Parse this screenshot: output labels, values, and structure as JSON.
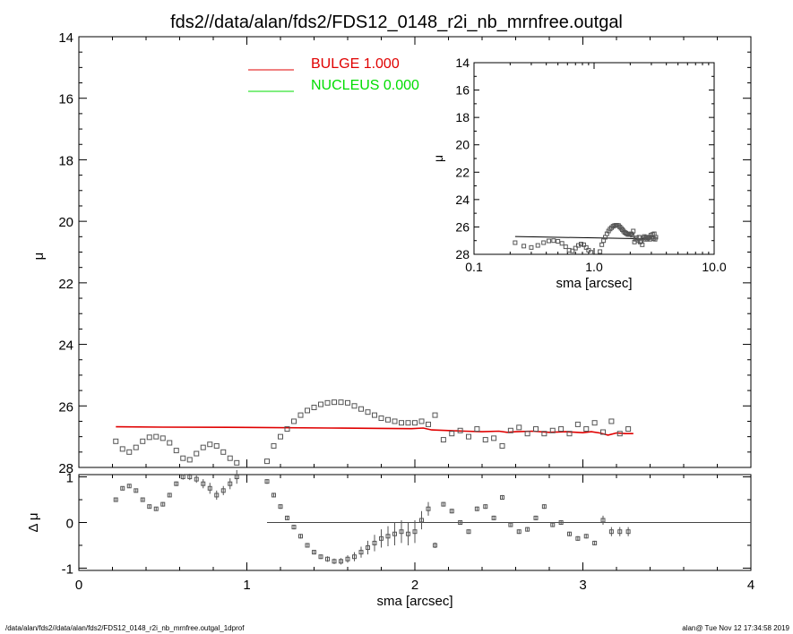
{
  "title": "fds2//data/alan/fds2/FDS12_0148_r2i_nb_mrnfree.outgal",
  "footer_left": "/data/alan/fds2//data/alan/fds2/FDS12_0148_r2i_nb_mrnfree.outgal_1dprof",
  "footer_right": "alan@  Tue Nov 12 17:34:58 2019",
  "colors": {
    "bulge": "#e00000",
    "nucleus": "#00dd00",
    "axes": "#000000",
    "points": "#555555"
  },
  "chart_data": [
    {
      "id": "main",
      "type": "scatter",
      "xlabel": "sma [arcsec]",
      "ylabel": "μ",
      "xlim": [
        0,
        4
      ],
      "ylim": [
        28,
        14
      ],
      "xticks": [
        0,
        1,
        2,
        3,
        4
      ],
      "xtick_labels": [
        "0",
        "1",
        "2",
        "3",
        "4"
      ],
      "yticks": [
        14,
        16,
        18,
        20,
        22,
        24,
        26,
        28
      ],
      "ytick_labels": [
        "14",
        "16",
        "18",
        "20",
        "22",
        "24",
        "26",
        "28"
      ],
      "legend": [
        {
          "label": "BULGE  1.000",
          "color": "#e00000"
        },
        {
          "label": "NUCLEUS  0.000",
          "color": "#00dd00"
        }
      ],
      "legend_placement": "top-center",
      "series": [
        {
          "name": "BULGE  1.000",
          "style": "line",
          "x": [
            0.22,
            0.5,
            1.0,
            1.5,
            1.98,
            2.05,
            2.1,
            2.2,
            2.3,
            2.4,
            2.5,
            2.55,
            2.6,
            2.7,
            2.8,
            2.9,
            3.0,
            3.05,
            3.1,
            3.15,
            3.2,
            3.25,
            3.3
          ],
          "y": [
            26.68,
            26.69,
            26.7,
            26.72,
            26.74,
            26.72,
            26.78,
            26.8,
            26.82,
            26.84,
            26.82,
            26.86,
            26.84,
            26.82,
            26.86,
            26.84,
            26.87,
            26.84,
            26.88,
            26.95,
            26.88,
            26.9,
            26.9
          ]
        },
        {
          "name": "data",
          "style": "points",
          "x": [
            0.22,
            0.26,
            0.3,
            0.34,
            0.38,
            0.42,
            0.46,
            0.5,
            0.54,
            0.58,
            0.62,
            0.66,
            0.7,
            0.74,
            0.78,
            0.82,
            0.86,
            0.9,
            0.94,
            1.12,
            1.16,
            1.2,
            1.24,
            1.28,
            1.32,
            1.36,
            1.4,
            1.44,
            1.48,
            1.52,
            1.56,
            1.6,
            1.64,
            1.68,
            1.72,
            1.76,
            1.8,
            1.84,
            1.88,
            1.92,
            1.96,
            2.0,
            2.04,
            2.08,
            2.12,
            2.17,
            2.22,
            2.27,
            2.32,
            2.37,
            2.42,
            2.47,
            2.52,
            2.57,
            2.62,
            2.67,
            2.72,
            2.77,
            2.82,
            2.87,
            2.92,
            2.97,
            3.02,
            3.07,
            3.12,
            3.17,
            3.22,
            3.27
          ],
          "y": [
            27.15,
            27.4,
            27.5,
            27.35,
            27.15,
            27.02,
            27.0,
            27.05,
            27.2,
            27.45,
            27.7,
            27.75,
            27.55,
            27.35,
            27.25,
            27.3,
            27.5,
            27.7,
            27.85,
            27.8,
            27.3,
            27.0,
            26.75,
            26.5,
            26.3,
            26.15,
            26.05,
            25.95,
            25.9,
            25.88,
            25.88,
            25.9,
            26.0,
            26.1,
            26.2,
            26.3,
            26.4,
            26.45,
            26.5,
            26.55,
            26.55,
            26.55,
            26.5,
            26.6,
            26.3,
            27.1,
            26.9,
            26.8,
            27.0,
            26.75,
            27.1,
            27.05,
            27.3,
            26.8,
            26.7,
            26.9,
            26.75,
            26.9,
            26.8,
            26.75,
            26.9,
            26.6,
            26.75,
            26.55,
            26.85,
            26.5,
            26.9,
            26.75
          ]
        }
      ]
    },
    {
      "id": "residual",
      "type": "scatter",
      "xlabel": "sma [arcsec]",
      "ylabel": "Δ μ",
      "xlim": [
        0,
        4
      ],
      "ylim": [
        -1.05,
        1.05
      ],
      "yticks": [
        -1,
        0,
        1
      ],
      "ytick_labels": [
        "-1",
        "0",
        "1"
      ],
      "zero_line_x": [
        1.12,
        4.0
      ],
      "series": [
        {
          "name": "residual",
          "style": "points-errorbars",
          "x": [
            0.22,
            0.26,
            0.3,
            0.34,
            0.38,
            0.42,
            0.46,
            0.5,
            0.54,
            0.58,
            0.62,
            0.66,
            0.7,
            0.74,
            0.78,
            0.82,
            0.86,
            0.9,
            0.94,
            1.12,
            1.16,
            1.2,
            1.24,
            1.28,
            1.32,
            1.36,
            1.4,
            1.44,
            1.48,
            1.52,
            1.56,
            1.6,
            1.64,
            1.68,
            1.72,
            1.76,
            1.8,
            1.84,
            1.88,
            1.92,
            1.96,
            2.0,
            2.04,
            2.08,
            2.12,
            2.17,
            2.22,
            2.27,
            2.32,
            2.37,
            2.42,
            2.47,
            2.52,
            2.57,
            2.62,
            2.67,
            2.72,
            2.77,
            2.82,
            2.87,
            2.92,
            2.97,
            3.02,
            3.07,
            3.12,
            3.17,
            3.22,
            3.27
          ],
          "y": [
            0.5,
            0.75,
            0.8,
            0.7,
            0.5,
            0.35,
            0.3,
            0.4,
            0.6,
            0.85,
            1.0,
            1.0,
            0.95,
            0.85,
            0.75,
            0.6,
            0.7,
            0.85,
            1.0,
            0.9,
            0.6,
            0.35,
            0.1,
            -0.1,
            -0.3,
            -0.5,
            -0.65,
            -0.75,
            -0.8,
            -0.85,
            -0.85,
            -0.8,
            -0.75,
            -0.65,
            -0.55,
            -0.45,
            -0.35,
            -0.3,
            -0.25,
            -0.2,
            -0.25,
            -0.2,
            0.05,
            0.3,
            -0.5,
            0.4,
            0.25,
            0.0,
            -0.2,
            0.3,
            0.35,
            0.1,
            0.55,
            -0.05,
            -0.2,
            -0.15,
            0.1,
            0.35,
            -0.05,
            0.0,
            -0.25,
            -0.35,
            -0.3,
            -0.45,
            0.05,
            -0.2,
            -0.2,
            -0.2
          ],
          "err": [
            0.04,
            0.04,
            0.04,
            0.04,
            0.04,
            0.04,
            0.04,
            0.05,
            0.05,
            0.05,
            0.06,
            0.07,
            0.08,
            0.1,
            0.12,
            0.1,
            0.1,
            0.12,
            0.15,
            0.05,
            0.05,
            0.05,
            0.05,
            0.05,
            0.05,
            0.05,
            0.05,
            0.05,
            0.06,
            0.06,
            0.07,
            0.08,
            0.1,
            0.12,
            0.15,
            0.18,
            0.2,
            0.22,
            0.25,
            0.25,
            0.25,
            0.25,
            0.2,
            0.15,
            0.06,
            0.05,
            0.05,
            0.05,
            0.05,
            0.05,
            0.05,
            0.05,
            0.05,
            0.05,
            0.05,
            0.05,
            0.05,
            0.05,
            0.05,
            0.05,
            0.05,
            0.05,
            0.05,
            0.05,
            0.1,
            0.1,
            0.1,
            0.1
          ]
        }
      ]
    },
    {
      "id": "inset",
      "type": "scatter",
      "xlabel": "sma [arcsec]",
      "ylabel": "μ",
      "xscale": "log",
      "xlim": [
        0.1,
        10.0
      ],
      "ylim": [
        28,
        14
      ],
      "xticks": [
        0.1,
        1.0,
        10.0
      ],
      "xtick_labels": [
        "0.1",
        "1.0",
        "10.0"
      ],
      "yticks": [
        14,
        16,
        18,
        20,
        22,
        24,
        26,
        28
      ],
      "ytick_labels": [
        "14",
        "16",
        "18",
        "20",
        "22",
        "24",
        "26",
        "28"
      ],
      "series": [
        {
          "name": "BULGE  1.000",
          "style": "line",
          "x": [
            0.22,
            3.27
          ],
          "y": [
            26.7,
            26.88
          ]
        },
        {
          "name": "data",
          "style": "points",
          "x": [
            0.22,
            0.26,
            0.3,
            0.34,
            0.38,
            0.42,
            0.46,
            0.5,
            0.54,
            0.58,
            0.62,
            0.66,
            0.7,
            0.74,
            0.78,
            0.82,
            0.86,
            0.9,
            0.94,
            1.12,
            1.16,
            1.2,
            1.24,
            1.28,
            1.32,
            1.36,
            1.4,
            1.44,
            1.48,
            1.52,
            1.56,
            1.6,
            1.64,
            1.68,
            1.72,
            1.76,
            1.8,
            1.84,
            1.88,
            1.92,
            1.96,
            2.0,
            2.04,
            2.08,
            2.12,
            2.17,
            2.22,
            2.27,
            2.32,
            2.37,
            2.42,
            2.47,
            2.52,
            2.57,
            2.62,
            2.67,
            2.72,
            2.77,
            2.82,
            2.87,
            2.92,
            2.97,
            3.02,
            3.07,
            3.12,
            3.17,
            3.22,
            3.27
          ],
          "y": [
            27.15,
            27.4,
            27.5,
            27.35,
            27.15,
            27.02,
            27.0,
            27.05,
            27.2,
            27.45,
            27.7,
            27.75,
            27.55,
            27.35,
            27.25,
            27.3,
            27.5,
            27.7,
            27.85,
            27.8,
            27.3,
            27.0,
            26.75,
            26.5,
            26.3,
            26.15,
            26.05,
            25.95,
            25.9,
            25.88,
            25.88,
            25.9,
            26.0,
            26.1,
            26.2,
            26.3,
            26.4,
            26.45,
            26.5,
            26.55,
            26.55,
            26.55,
            26.5,
            26.6,
            26.3,
            27.1,
            26.9,
            26.8,
            27.0,
            26.75,
            27.1,
            27.05,
            27.3,
            26.8,
            26.7,
            26.9,
            26.75,
            26.9,
            26.8,
            26.75,
            26.9,
            26.6,
            26.75,
            26.55,
            26.85,
            26.5,
            26.9,
            26.75
          ]
        }
      ]
    }
  ]
}
